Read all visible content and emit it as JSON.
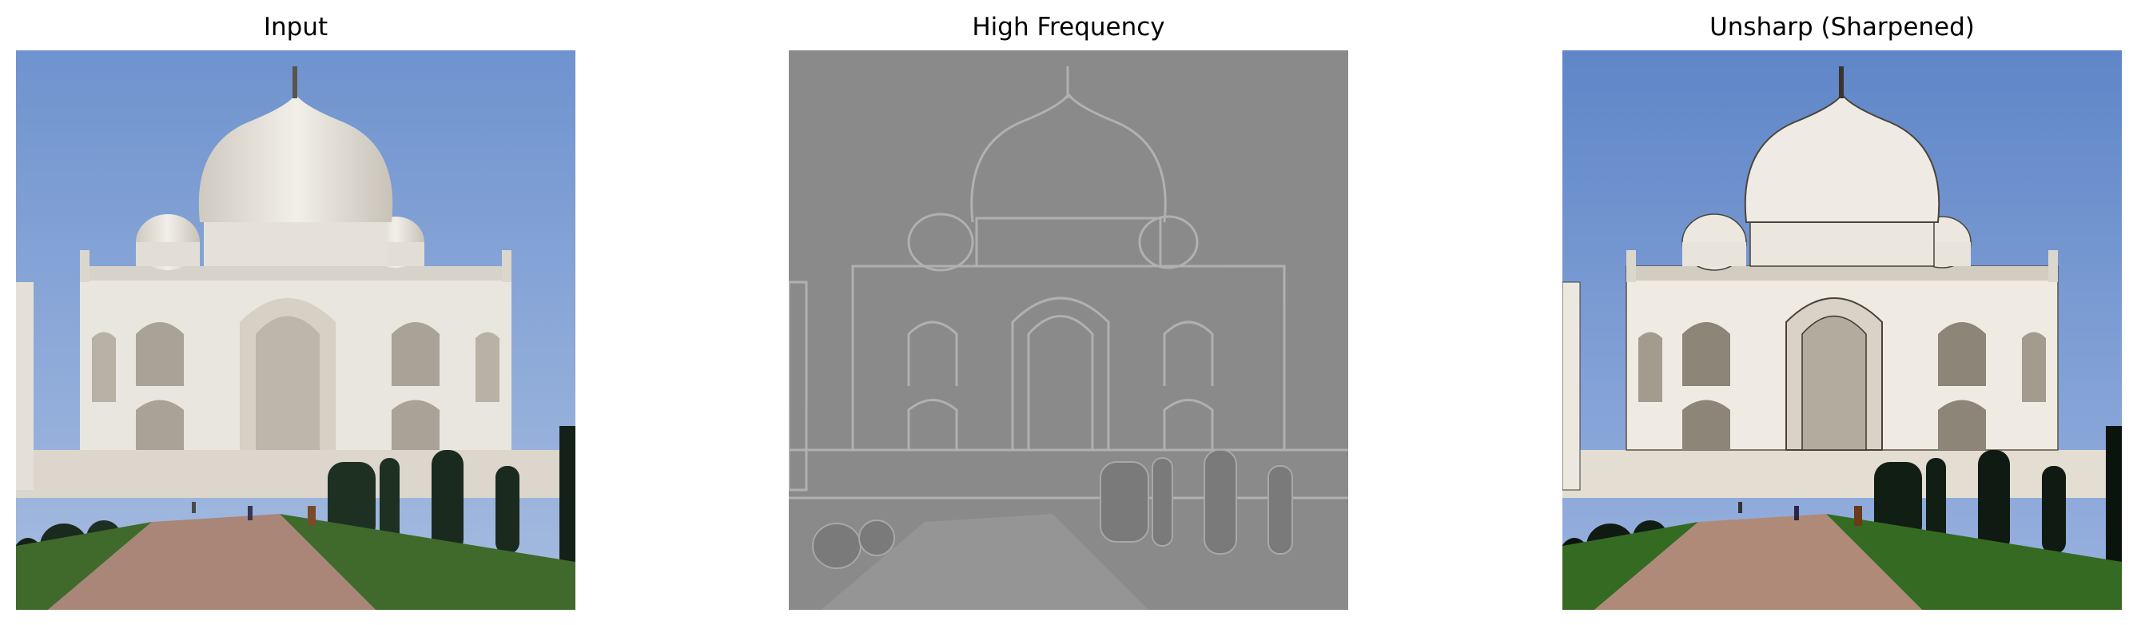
{
  "panels": [
    {
      "title": "Input",
      "variant": "input"
    },
    {
      "title": "High Frequency",
      "variant": "highpass"
    },
    {
      "title": "Unsharp (Sharpened)",
      "variant": "sharpened"
    }
  ],
  "colors": {
    "sky_top": "#6f93cf",
    "sky_bottom": "#9fb7dd",
    "marble": "#e9e6df",
    "marble_shadow": "#c9c4ba",
    "tree": "#1b2a1f",
    "lawn": "#3f6a2b",
    "path": "#a98677",
    "highpass_bg": "#8a8a8a",
    "highpass_edge": "#b8b8b8",
    "highpass_dark": "#6f6f6f"
  }
}
